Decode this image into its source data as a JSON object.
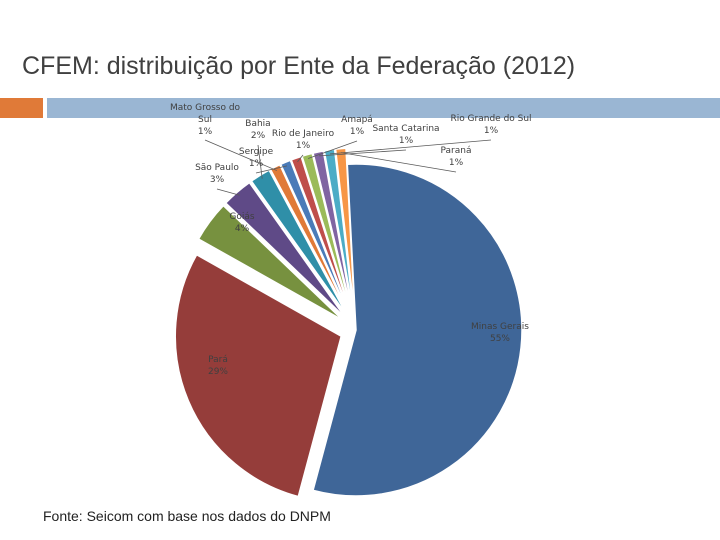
{
  "slide": {
    "title": "CFEM: distribuição por Ente da Federação (2012)",
    "source": "Fonte: Seicom  com base nos dados do DNPM",
    "accent_colors": {
      "orange": "#e07a38",
      "blue": "#9ab6d3"
    }
  },
  "chart_data": {
    "type": "pie",
    "title": "CFEM: distribuição por Ente da Federação (2012)",
    "unit": "%",
    "slices": [
      {
        "name": "Minas Gerais",
        "value": 55,
        "label": "55%",
        "color": "#3f6698",
        "exploded": false
      },
      {
        "name": "Pará",
        "value": 29,
        "label": "29%",
        "color": "#953d3a",
        "exploded": true
      },
      {
        "name": "Goiás",
        "value": 4,
        "label": "4%",
        "color": "#77913f",
        "exploded": true
      },
      {
        "name": "São Paulo",
        "value": 3,
        "label": "3%",
        "color": "#5f4a87",
        "exploded": true
      },
      {
        "name": "Bahia",
        "value": 2,
        "label": "2%",
        "color": "#2f8fa8",
        "exploded": true
      },
      {
        "name": "Mato Grosso do Sul",
        "value": 1,
        "label": "1%",
        "color": "#e07a38",
        "exploded": true
      },
      {
        "name": "Sergipe",
        "value": 1,
        "label": "1%",
        "color": "#4a7bb8",
        "exploded": true
      },
      {
        "name": "Rio de Janeiro",
        "value": 1,
        "label": "1%",
        "color": "#bf4e4b",
        "exploded": true
      },
      {
        "name": "Amapá",
        "value": 1,
        "label": "1%",
        "color": "#9bbb59",
        "exploded": true
      },
      {
        "name": "Santa Catarina",
        "value": 1,
        "label": "1%",
        "color": "#8064a2",
        "exploded": true
      },
      {
        "name": "Rio Grande do Sul",
        "value": 1,
        "label": "1%",
        "color": "#4bacc6",
        "exploded": true
      },
      {
        "name": "Paraná",
        "value": 1,
        "label": "1%",
        "color": "#f79646",
        "exploded": true
      }
    ]
  }
}
